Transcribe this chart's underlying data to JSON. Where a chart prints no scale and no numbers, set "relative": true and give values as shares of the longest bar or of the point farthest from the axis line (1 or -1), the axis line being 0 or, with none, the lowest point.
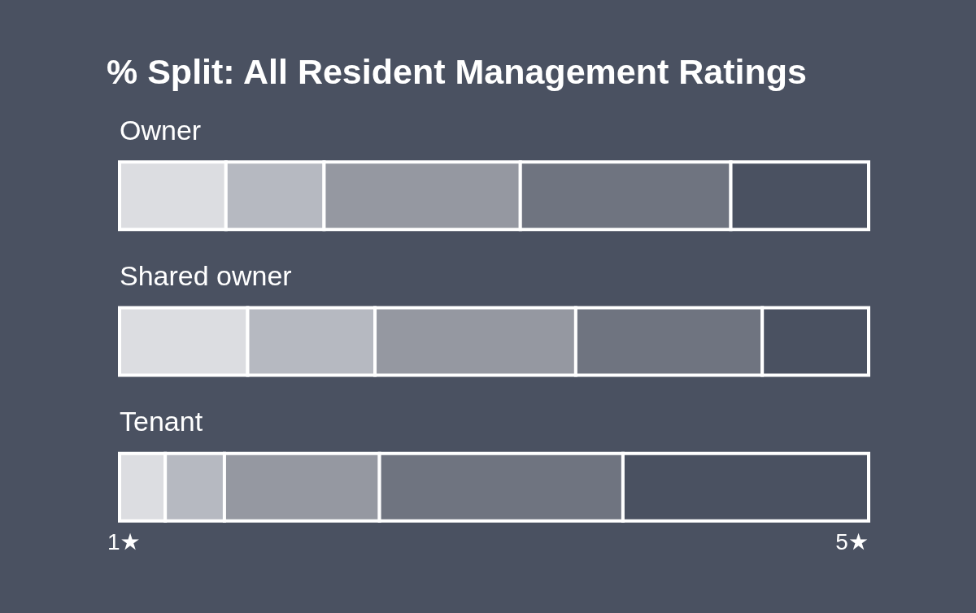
{
  "chart_data": {
    "type": "bar",
    "title": "% Split: All Resident Management Ratings",
    "orientation": "horizontal",
    "stacked": true,
    "relative": true,
    "categories": [
      "Owner",
      "Shared owner",
      "Tenant"
    ],
    "series": [
      {
        "name": "1★",
        "color": "#dcdde1",
        "values": [
          0.142,
          0.171,
          0.061
        ]
      },
      {
        "color": "#b6b9c1",
        "values": [
          0.131,
          0.17,
          0.079
        ]
      },
      {
        "color": "#9598a1",
        "values": [
          0.262,
          0.268,
          0.207
        ]
      },
      {
        "color": "#6f7480",
        "values": [
          0.281,
          0.249,
          0.325
        ]
      },
      {
        "name": "5★",
        "color": "#4a5161",
        "values": [
          0.184,
          0.142,
          0.328
        ]
      }
    ]
  }
}
